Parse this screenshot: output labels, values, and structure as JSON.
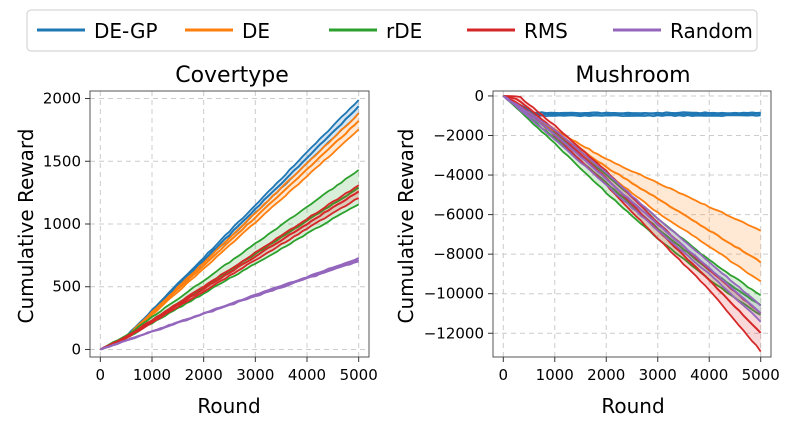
{
  "legend": {
    "placement": "top-center",
    "entries": [
      {
        "name": "DE-GP",
        "color": "#1f77b4"
      },
      {
        "name": "DE",
        "color": "#ff7f0e"
      },
      {
        "name": "rDE",
        "color": "#2ca02c"
      },
      {
        "name": "RMS",
        "color": "#d62728"
      },
      {
        "name": "Random",
        "color": "#9467bd"
      }
    ]
  },
  "chart_data": [
    {
      "type": "line",
      "title": "Covertype",
      "xlabel": "Round",
      "ylabel": "Cumulative Reward",
      "xlim": [
        -200,
        5200
      ],
      "ylim": [
        -60,
        2060
      ],
      "xticks": [
        0,
        1000,
        2000,
        3000,
        4000,
        5000
      ],
      "yticks": [
        0,
        500,
        1000,
        1500,
        2000
      ],
      "grid": true,
      "series": [
        {
          "name": "DE-GP",
          "color": "#1f77b4",
          "x": [
            0,
            500,
            5000
          ],
          "upper": [
            0,
            105,
            1990
          ],
          "lower": [
            0,
            95,
            1880
          ],
          "mean": [
            0,
            100,
            1935
          ]
        },
        {
          "name": "DE",
          "color": "#ff7f0e",
          "x": [
            0,
            500,
            5000
          ],
          "upper": [
            0,
            100,
            1880
          ],
          "lower": [
            0,
            90,
            1750
          ],
          "mean": [
            0,
            95,
            1820
          ]
        },
        {
          "name": "rDE",
          "color": "#2ca02c",
          "x": [
            0,
            500,
            5000
          ],
          "upper": [
            0,
            110,
            1430
          ],
          "lower": [
            0,
            90,
            1160
          ],
          "mean": [
            0,
            100,
            1290
          ]
        },
        {
          "name": "RMS",
          "color": "#d62728",
          "x": [
            0,
            500,
            5000
          ],
          "upper": [
            0,
            100,
            1310
          ],
          "lower": [
            0,
            90,
            1210
          ],
          "mean": [
            0,
            95,
            1260
          ]
        },
        {
          "name": "Random",
          "color": "#9467bd",
          "x": [
            0,
            5000
          ],
          "upper": [
            0,
            725
          ],
          "lower": [
            0,
            705
          ],
          "mean": [
            0,
            715
          ]
        }
      ]
    },
    {
      "type": "line",
      "title": "Mushroom",
      "xlabel": "Round",
      "ylabel": "Cumulative Reward",
      "xlim": [
        -200,
        5200
      ],
      "ylim": [
        -13200,
        250
      ],
      "xticks": [
        0,
        1000,
        2000,
        3000,
        4000,
        5000
      ],
      "yticks": [
        0,
        -2000,
        -4000,
        -6000,
        -8000,
        -10000,
        -12000
      ],
      "grid": true,
      "series": [
        {
          "name": "DE-GP",
          "color": "#1f77b4",
          "x": [
            0,
            600,
            5000
          ],
          "upper": [
            0,
            -850,
            -850
          ],
          "lower": [
            0,
            -1000,
            -1000
          ],
          "mean": [
            0,
            -920,
            -920
          ]
        },
        {
          "name": "DE",
          "color": "#ff7f0e",
          "x": [
            0,
            1000,
            2000,
            3000,
            4000,
            5000
          ],
          "upper": [
            0,
            -1700,
            -3200,
            -4400,
            -5600,
            -6800
          ],
          "lower": [
            0,
            -1900,
            -3900,
            -5900,
            -7600,
            -9400
          ],
          "mean": [
            0,
            -1800,
            -3600,
            -5200,
            -6800,
            -8400
          ]
        },
        {
          "name": "rDE",
          "color": "#2ca02c",
          "x": [
            0,
            1000,
            2000,
            3000,
            4000,
            5000
          ],
          "upper": [
            0,
            -1900,
            -4000,
            -6200,
            -8300,
            -10100
          ],
          "lower": [
            0,
            -2400,
            -4900,
            -7200,
            -9300,
            -11100
          ],
          "mean": [
            0,
            -2150,
            -4400,
            -6700,
            -8800,
            -10600
          ]
        },
        {
          "name": "RMS",
          "color": "#d62728",
          "x": [
            0,
            300,
            1000,
            2000,
            3000,
            4000,
            5000
          ],
          "upper": [
            0,
            0,
            -1500,
            -3800,
            -6400,
            -8800,
            -11000
          ],
          "lower": [
            0,
            -400,
            -2000,
            -4500,
            -7200,
            -9800,
            -12900
          ],
          "mean": [
            0,
            -200,
            -1750,
            -4150,
            -6800,
            -9300,
            -12000
          ]
        },
        {
          "name": "Random",
          "color": "#9467bd",
          "x": [
            0,
            1000,
            2000,
            3000,
            4000,
            5000
          ],
          "upper": [
            0,
            -1700,
            -3900,
            -6200,
            -8400,
            -10600
          ],
          "lower": [
            0,
            -2200,
            -4500,
            -6800,
            -9000,
            -11400
          ],
          "mean": [
            0,
            -1950,
            -4200,
            -6500,
            -8700,
            -11000
          ]
        }
      ]
    }
  ]
}
